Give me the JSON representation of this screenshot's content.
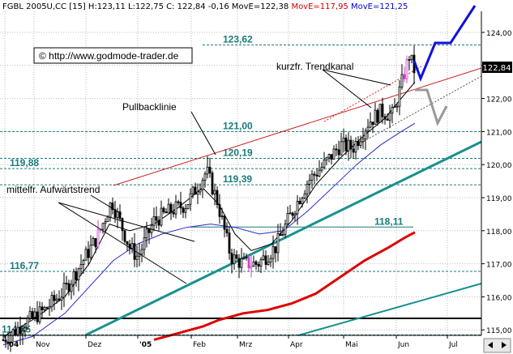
{
  "header": {
    "symbol": "FGBL 2005U,CC [15]",
    "high_label": "H:123,11",
    "low_label": "L:122,75",
    "close_label": "C: 122,84 -0,16",
    "move_a": "MovE=122,38",
    "move_b": "MovE=117,95",
    "move_c": "MovE=121,25"
  },
  "copyright": "© http://www.godmode-trader.de",
  "price_badge": "122,84",
  "colors": {
    "background": "#ffffff",
    "candles": "#000000",
    "ma_short": "#000000",
    "ma_mid": "#2a2acc",
    "ma_long": "#dd0000",
    "levels": "#1a7a7a",
    "trend_channel": "#cc2222",
    "support_trend": "#1a9090",
    "projection_up": "#1010dd",
    "projection_alt": "#999999",
    "highlight_candle": "#cc44cc",
    "header_red": "#cc0000",
    "header_blue": "#0000cc"
  },
  "chart_data": {
    "type": "candlestick",
    "x_tick_labels": [
      "'04",
      "Nov",
      "Dez",
      "'05",
      "Feb",
      "Mrz",
      "Apr",
      "Mai",
      "Jun",
      "Jul"
    ],
    "y_tick_labels": [
      "115,00",
      "116,00",
      "117,00",
      "118,00",
      "119,00",
      "120,00",
      "121,00",
      "122,00",
      "123,00",
      "124,00"
    ],
    "ylim": [
      114.5,
      124.5
    ],
    "grid": true,
    "levels": [
      {
        "value": 123.62,
        "label": "123,62"
      },
      {
        "value": 121.0,
        "label": "121,00"
      },
      {
        "value": 120.19,
        "label": "120,19"
      },
      {
        "value": 119.88,
        "label": "119,88"
      },
      {
        "value": 119.39,
        "label": "119,39"
      },
      {
        "value": 118.11,
        "label": "118,11"
      },
      {
        "value": 116.77,
        "label": "116,77"
      },
      {
        "value": 114.85,
        "label": "114,85"
      }
    ],
    "annotations": [
      {
        "text": "Pullbacklinie"
      },
      {
        "text": "kurzfr. Trendkanal"
      },
      {
        "text": "mittelfr. Aufwärtstrend"
      }
    ],
    "last_price": 122.84
  }
}
